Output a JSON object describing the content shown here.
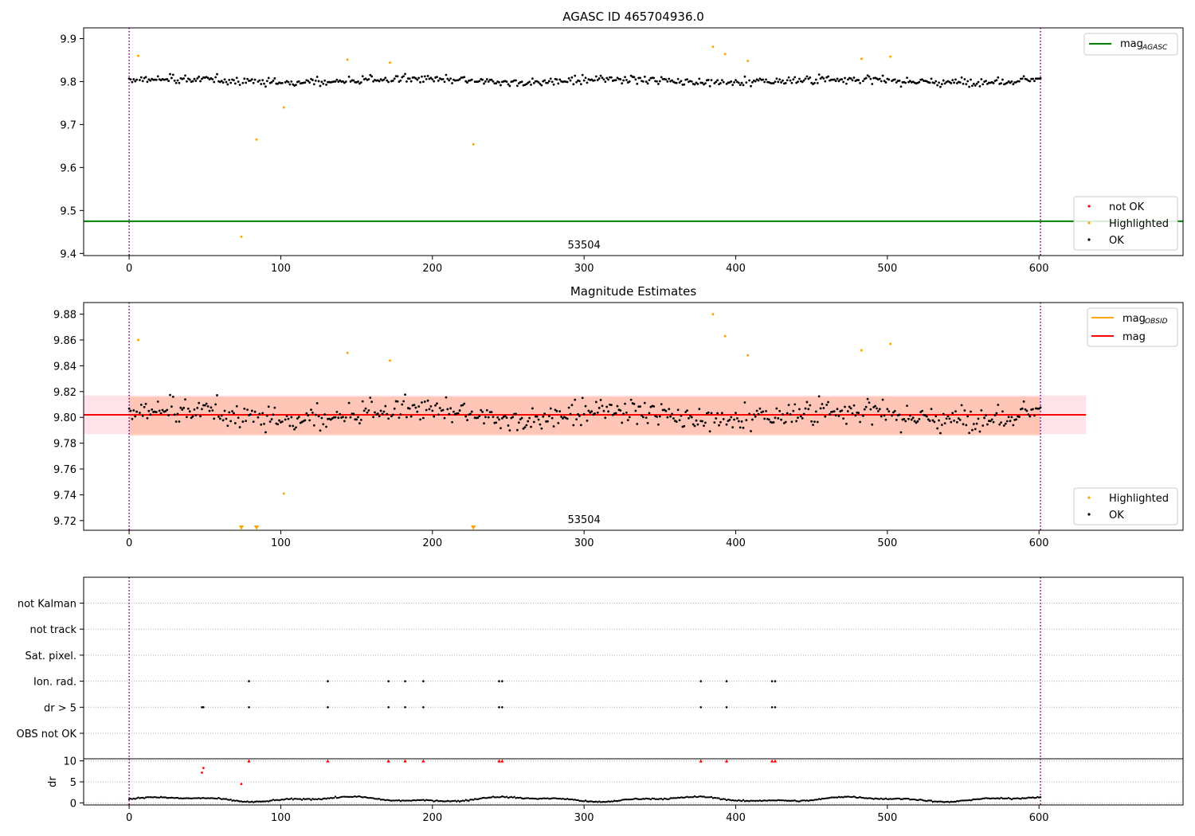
{
  "window": {
    "title": "AGASC ID 465704936.0"
  },
  "colors": {
    "ok": "#000000",
    "highlighted": "#ffa500",
    "not_ok": "#ff0000",
    "agasc_line": "#008000",
    "obsid_line": "#ffa500",
    "mag_line": "#ff0000",
    "vline": "#800080",
    "grid": "#b0b0b0",
    "band_outer": "#ffc0cb",
    "band_inner": "#ffa07a"
  },
  "chart_data": [
    {
      "type": "scatter",
      "title": "AGASC ID 465704936.0",
      "xlabel": "",
      "ylabel": "",
      "xlim": [
        -30,
        695
      ],
      "ylim": [
        9.395,
        9.925
      ],
      "xticks": [
        0,
        100,
        200,
        300,
        400,
        500,
        600
      ],
      "yticks": [
        "9.4",
        "9.5",
        "9.6",
        "9.7",
        "9.8",
        "9.9"
      ],
      "grid": false,
      "obsid_boundaries": [
        0,
        601
      ],
      "obsid_label": "53504",
      "mag_agasc": 9.475,
      "ok_series": {
        "name": "OK",
        "n_points": 598,
        "x_range": [
          0,
          601
        ],
        "mean": 9.802,
        "scatter": 0.015
      },
      "highlighted": [
        {
          "x": 6,
          "y": 9.86
        },
        {
          "x": 74,
          "y": 9.439
        },
        {
          "x": 84,
          "y": 9.665
        },
        {
          "x": 102,
          "y": 9.74
        },
        {
          "x": 144,
          "y": 9.851
        },
        {
          "x": 172,
          "y": 9.844
        },
        {
          "x": 227,
          "y": 9.654
        },
        {
          "x": 385,
          "y": 9.881
        },
        {
          "x": 393,
          "y": 9.864
        },
        {
          "x": 408,
          "y": 9.848
        },
        {
          "x": 483,
          "y": 9.853
        },
        {
          "x": 502,
          "y": 9.858
        }
      ],
      "legend_lines": {
        "position": "upper-right",
        "items": [
          {
            "label": "mag",
            "sub": "AGASC"
          }
        ]
      },
      "legend_points": {
        "position": "lower-right",
        "items": [
          "not OK",
          "Highlighted",
          "OK"
        ]
      }
    },
    {
      "type": "scatter",
      "title": "Magnitude Estimates",
      "xlabel": "",
      "ylabel": "",
      "xlim": [
        -30,
        695
      ],
      "ylim": [
        9.7125,
        9.889
      ],
      "xticks": [
        0,
        100,
        200,
        300,
        400,
        500,
        600
      ],
      "yticks": [
        "9.72",
        "9.74",
        "9.76",
        "9.78",
        "9.80",
        "9.82",
        "9.84",
        "9.86",
        "9.88"
      ],
      "grid": false,
      "obsid_boundaries": [
        0,
        601
      ],
      "obsid_label": "53504",
      "mag": 9.802,
      "mag_obsid": 9.802,
      "band_outer": [
        9.787,
        9.817
      ],
      "band_inner": [
        9.786,
        9.816
      ],
      "band_x": [
        -30,
        631
      ],
      "inner_band_x": [
        0,
        601
      ],
      "highlighted_in_range": [
        {
          "x": 6,
          "y": 9.86
        },
        {
          "x": 102,
          "y": 9.741
        },
        {
          "x": 144,
          "y": 9.85
        },
        {
          "x": 172,
          "y": 9.844
        },
        {
          "x": 385,
          "y": 9.88
        },
        {
          "x": 393,
          "y": 9.863
        },
        {
          "x": 408,
          "y": 9.848
        },
        {
          "x": 483,
          "y": 9.852
        },
        {
          "x": 502,
          "y": 9.857
        }
      ],
      "highlighted_below_range_x": [
        74,
        84,
        227
      ],
      "legend_lines": {
        "position": "upper-right",
        "items": [
          {
            "label": "mag",
            "sub": "OBSID"
          },
          {
            "label": "mag",
            "sub": ""
          }
        ]
      },
      "legend_points": {
        "position": "lower-right",
        "items": [
          "Highlighted",
          "OK"
        ]
      }
    },
    {
      "type": "scatter",
      "title": "",
      "xlabel": "",
      "ylabel": "",
      "xlim": [
        -30,
        695
      ],
      "categories": [
        "OBS not OK",
        "dr > 5",
        "Ion. rad.",
        "Sat. pixel.",
        "not track",
        "not Kalman"
      ],
      "grid": "horizontal-dotted",
      "obsid_boundaries": [
        0,
        601
      ],
      "flags": {
        "dr > 5": [
          48,
          49,
          79,
          131,
          171,
          182,
          194,
          244,
          246,
          377,
          394,
          424,
          426
        ],
        "Ion. rad.": [
          79,
          131,
          171,
          182,
          194,
          244,
          246,
          377,
          394,
          424,
          426
        ]
      }
    },
    {
      "type": "scatter",
      "title": "",
      "xlabel": "",
      "ylabel": "dr",
      "xlim": [
        -30,
        695
      ],
      "ylim": [
        -0.5,
        10.5
      ],
      "xticks": [
        0,
        100,
        200,
        300,
        400,
        500,
        600
      ],
      "yticks": [
        "0",
        "5",
        "10"
      ],
      "grid": "horizontal-dotted",
      "obsid_boundaries": [
        0,
        601
      ],
      "dr_clipped_at": 10,
      "dr_ok_range": [
        0,
        1.8
      ],
      "dr_not_ok": [
        {
          "x": 48,
          "y": 7.2
        },
        {
          "x": 49,
          "y": 8.3
        },
        {
          "x": 74,
          "y": 4.5
        },
        {
          "x": 79,
          "y": 10
        },
        {
          "x": 131,
          "y": 10
        },
        {
          "x": 171,
          "y": 10
        },
        {
          "x": 182,
          "y": 10
        },
        {
          "x": 194,
          "y": 10
        },
        {
          "x": 244,
          "y": 10
        },
        {
          "x": 246,
          "y": 10
        },
        {
          "x": 377,
          "y": 10
        },
        {
          "x": 394,
          "y": 10
        },
        {
          "x": 424,
          "y": 10
        },
        {
          "x": 426,
          "y": 10
        }
      ]
    }
  ]
}
